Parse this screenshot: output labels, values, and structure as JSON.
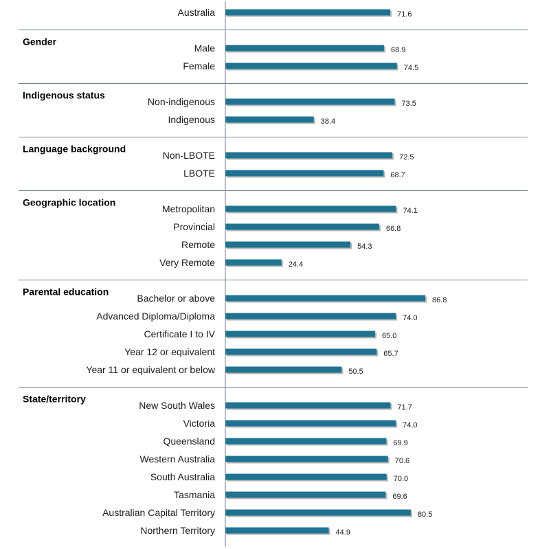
{
  "colors": {
    "bar": "#1f7391",
    "bar_shadow": "#b8b8b8",
    "axis": "#6f7f8f",
    "separator": "#6f7f8f"
  },
  "chart_data": {
    "type": "bar",
    "orientation": "horizontal",
    "xlim": [
      0,
      100
    ],
    "grid": false,
    "sections": [
      {
        "label": "",
        "items": [
          {
            "label": "Australia",
            "value": 71.6,
            "value_label": "71.6"
          }
        ]
      },
      {
        "label": "Gender",
        "items": [
          {
            "label": "Male",
            "value": 68.9,
            "value_label": "68.9"
          },
          {
            "label": "Female",
            "value": 74.5,
            "value_label": "74.5"
          }
        ]
      },
      {
        "label": "Indigenous status",
        "items": [
          {
            "label": "Non-indigenous",
            "value": 73.5,
            "value_label": "73.5"
          },
          {
            "label": "Indigenous",
            "value": 38.4,
            "value_label": "38.4"
          }
        ]
      },
      {
        "label": "Language background",
        "items": [
          {
            "label": "Non-LBOTE",
            "value": 72.5,
            "value_label": "72.5"
          },
          {
            "label": "LBOTE",
            "value": 68.7,
            "value_label": "68.7"
          }
        ]
      },
      {
        "label": "Geographic location",
        "items": [
          {
            "label": "Metropolitan",
            "value": 74.1,
            "value_label": "74.1"
          },
          {
            "label": "Provincial",
            "value": 66.8,
            "value_label": "66.8"
          },
          {
            "label": "Remote",
            "value": 54.3,
            "value_label": "54.3"
          },
          {
            "label": "Very Remote",
            "value": 24.4,
            "value_label": "24.4"
          }
        ]
      },
      {
        "label": "Parental education",
        "items": [
          {
            "label": "Bachelor or above",
            "value": 86.8,
            "value_label": "86.8"
          },
          {
            "label": "Advanced Diploma/Diploma",
            "value": 74.0,
            "value_label": "74.0"
          },
          {
            "label": "Certificate I to IV",
            "value": 65.0,
            "value_label": "65.0"
          },
          {
            "label": "Year 12 or equivalent",
            "value": 65.7,
            "value_label": "65.7"
          },
          {
            "label": "Year 11 or equivalent or below",
            "value": 50.5,
            "value_label": "50.5"
          }
        ]
      },
      {
        "label": "State/territory",
        "items": [
          {
            "label": "New South Wales",
            "value": 71.7,
            "value_label": "71.7"
          },
          {
            "label": "Victoria",
            "value": 74.0,
            "value_label": "74.0"
          },
          {
            "label": "Queensland",
            "value": 69.9,
            "value_label": "69.9"
          },
          {
            "label": "Western Australia",
            "value": 70.6,
            "value_label": "70.6"
          },
          {
            "label": "South Australia",
            "value": 70.0,
            "value_label": "70.0"
          },
          {
            "label": "Tasmania",
            "value": 69.6,
            "value_label": "69.6"
          },
          {
            "label": "Australian Capital Territory",
            "value": 80.5,
            "value_label": "80.5"
          },
          {
            "label": "Northern Territory",
            "value": 44.9,
            "value_label": "44.9"
          }
        ]
      }
    ]
  }
}
